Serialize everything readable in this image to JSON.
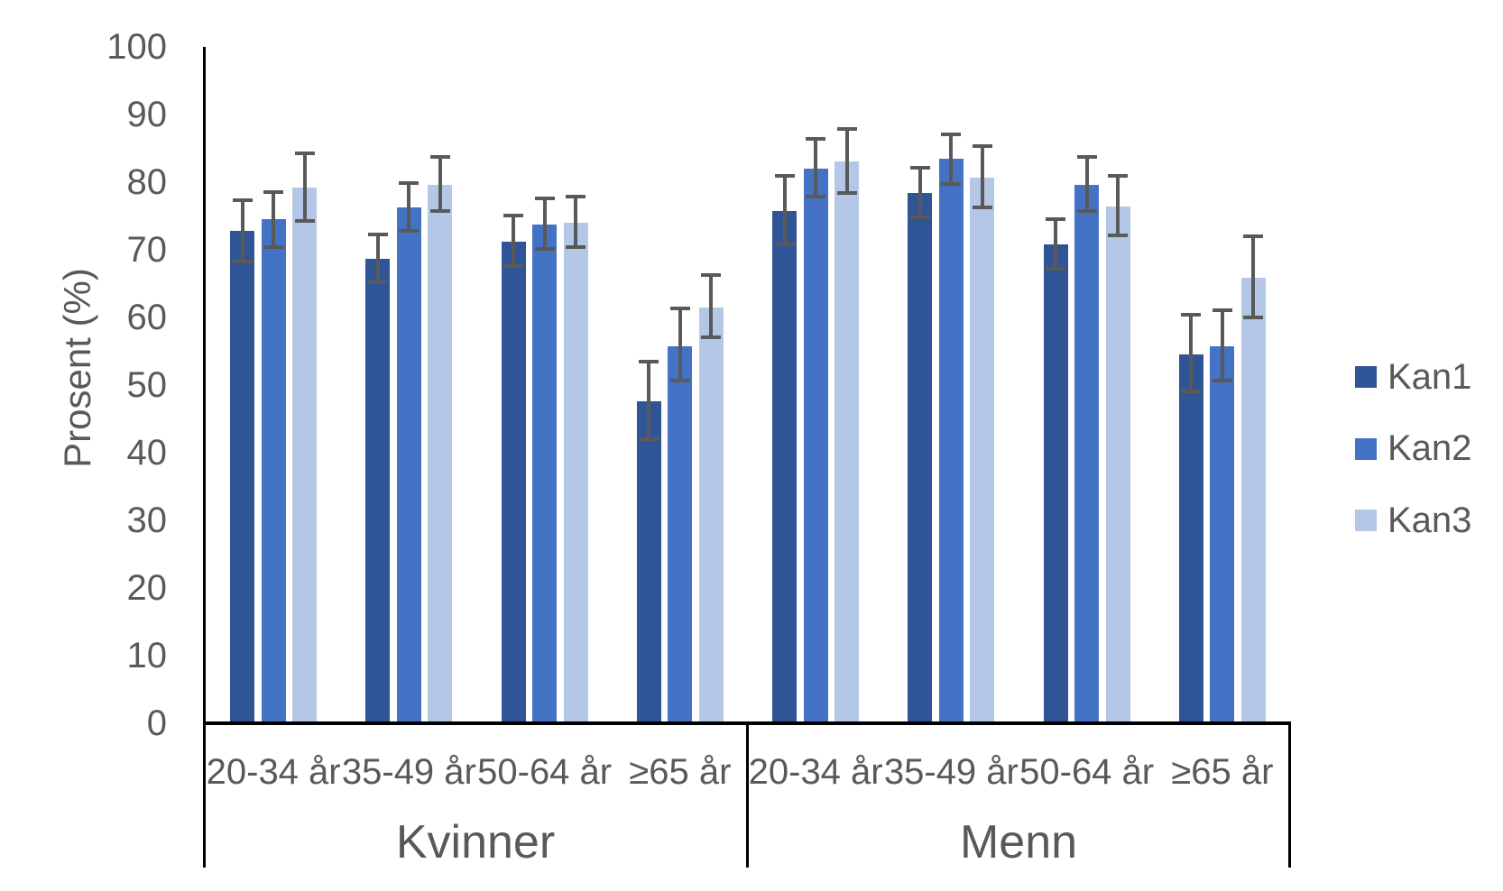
{
  "colors": {
    "kan1": "#2F5597",
    "kan2": "#4472C4",
    "kan3": "#B4C7E7",
    "error_bar": "#595959",
    "axis_text": "#595959",
    "axis_line": "#000000",
    "background": "#FFFFFF"
  },
  "chart_data": {
    "type": "bar",
    "title": "",
    "xlabel": "",
    "ylabel": "Prosent (%)",
    "ylim": [
      0,
      100
    ],
    "yticks": [
      0,
      10,
      20,
      30,
      40,
      50,
      60,
      70,
      80,
      90,
      100
    ],
    "grid": false,
    "legend_position": "right",
    "error_bars": true,
    "groups": [
      "Kvinner",
      "Menn"
    ],
    "categories": [
      "20-34 år",
      "35-49 år",
      "50-64 år",
      "≥65 år"
    ],
    "series": [
      {
        "name": "Kan1",
        "color": "#2F5597",
        "values": {
          "Kvinner": [
            72.8,
            68.7,
            71.2,
            47.6
          ],
          "Menn": [
            75.7,
            78.4,
            70.8,
            54.6
          ]
        },
        "err_low": {
          "Kvinner": [
            68.0,
            64.9,
            67.3,
            41.8
          ],
          "Menn": [
            70.5,
            74.6,
            66.9,
            48.8
          ]
        },
        "err_high": {
          "Kvinner": [
            77.6,
            72.5,
            75.4,
            53.7
          ],
          "Menn": [
            81.2,
            82.4,
            74.8,
            60.7
          ]
        }
      },
      {
        "name": "Kan2",
        "color": "#4472C4",
        "values": {
          "Kvinner": [
            74.6,
            76.3,
            73.7,
            55.8
          ],
          "Menn": [
            82.0,
            83.5,
            79.6,
            55.7
          ]
        },
        "err_low": {
          "Kvinner": [
            70.2,
            72.5,
            69.9,
            50.4
          ],
          "Menn": [
            77.6,
            79.5,
            75.5,
            50.4
          ]
        },
        "err_high": {
          "Kvinner": [
            78.8,
            80.2,
            77.9,
            61.6
          ],
          "Menn": [
            86.7,
            87.4,
            84.0,
            61.4
          ]
        }
      },
      {
        "name": "Kan3",
        "color": "#B4C7E7",
        "values": {
          "Kvinner": [
            79.2,
            79.6,
            74.0,
            61.5
          ],
          "Menn": [
            83.1,
            80.7,
            76.4,
            65.9
          ]
        },
        "err_low": {
          "Kvinner": [
            74.0,
            75.5,
            70.2,
            56.8
          ],
          "Menn": [
            78.1,
            76.0,
            71.9,
            59.7
          ]
        },
        "err_high": {
          "Kvinner": [
            84.5,
            84.0,
            78.1,
            66.5
          ],
          "Menn": [
            88.2,
            85.6,
            81.2,
            72.3
          ]
        }
      }
    ]
  },
  "legend": {
    "items": [
      "Kan1",
      "Kan2",
      "Kan3"
    ]
  }
}
